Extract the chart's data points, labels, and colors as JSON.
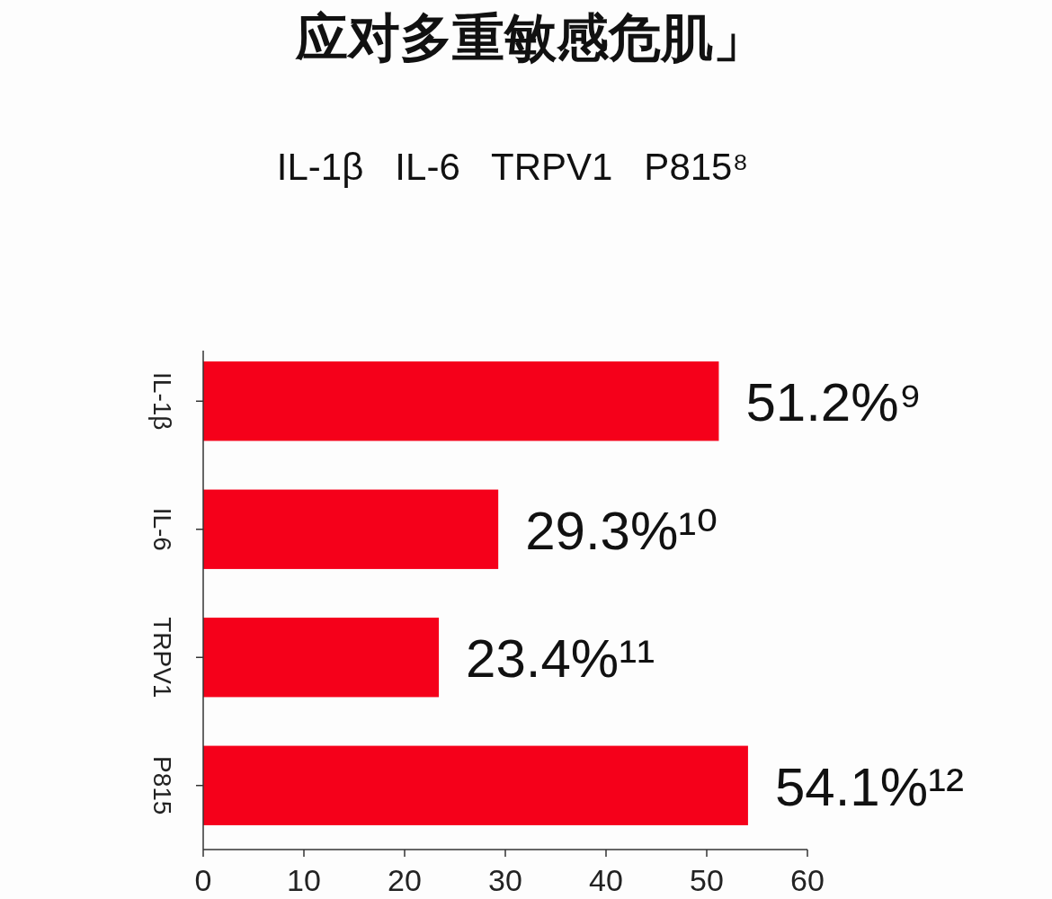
{
  "chart_data": {
    "type": "bar",
    "orientation": "horizontal",
    "title": "应对多重敏感危肌」",
    "subtitle": "IL-1β   IL-6   TRPV1   P815⁸",
    "categories": [
      "IL-1β",
      "IL-6",
      "TRPV1",
      "P815"
    ],
    "values": [
      51.2,
      29.3,
      23.4,
      54.1
    ],
    "value_labels": [
      "51.2%⁹",
      "29.3%¹⁰",
      "23.4%¹¹",
      "54.1%¹²"
    ],
    "color": "#f5001a",
    "xlim": [
      0,
      60
    ],
    "xticks": [
      0,
      10,
      20,
      30,
      40,
      50,
      60
    ]
  }
}
